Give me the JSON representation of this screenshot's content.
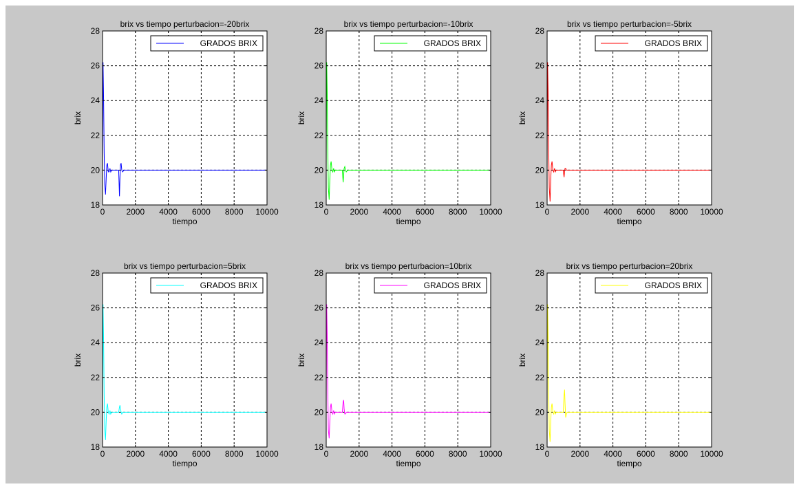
{
  "figure": {
    "background": "#c8c8c8"
  },
  "chart_data": [
    {
      "type": "line",
      "title": "brix vs tiempo perturbacion=-20brix",
      "xlabel": "tiempo",
      "ylabel": "brix",
      "xlim": [
        0,
        10000
      ],
      "ylim": [
        18,
        28
      ],
      "xticks": [
        "0",
        "2000",
        "4000",
        "6000",
        "8000",
        "10000"
      ],
      "yticks": [
        "18",
        "20",
        "22",
        "24",
        "26",
        "28"
      ],
      "grid": true,
      "legend_position": "top-right",
      "color": "#0000ff",
      "series": [
        {
          "name": "GRADOS BRIX",
          "x": [
            0,
            30,
            60,
            100,
            130,
            180,
            220,
            260,
            300,
            350,
            400,
            450,
            500,
            550,
            600,
            700,
            800,
            900,
            980,
            1030,
            1060,
            1090,
            1130,
            1170,
            1220,
            1300,
            1500,
            2000,
            10000
          ],
          "y": [
            20,
            26.2,
            24.5,
            21,
            19.2,
            18.6,
            19.5,
            20.3,
            20.4,
            19.9,
            19.9,
            20.1,
            19.9,
            20.0,
            20.0,
            20.0,
            20.0,
            20.0,
            20.0,
            18.5,
            19.6,
            20.3,
            20.4,
            20.0,
            19.9,
            20.0,
            20.0,
            20.0,
            20.0
          ]
        }
      ]
    },
    {
      "type": "line",
      "title": "brix vs tiempo perturbacion=-10brix",
      "xlabel": "tiempo",
      "ylabel": "brix",
      "xlim": [
        0,
        10000
      ],
      "ylim": [
        18,
        28
      ],
      "xticks": [
        "0",
        "2000",
        "4000",
        "6000",
        "8000",
        "10000"
      ],
      "yticks": [
        "18",
        "20",
        "22",
        "24",
        "26",
        "28"
      ],
      "grid": true,
      "legend_position": "top-right",
      "color": "#00ff00",
      "series": [
        {
          "name": "GRADOS BRIX",
          "x": [
            0,
            30,
            60,
            100,
            130,
            180,
            220,
            260,
            300,
            350,
            400,
            450,
            500,
            550,
            600,
            700,
            800,
            900,
            980,
            1030,
            1060,
            1090,
            1130,
            1170,
            1220,
            1300,
            1500,
            2000,
            10000
          ],
          "y": [
            20,
            26.2,
            24.5,
            21,
            19.0,
            18.3,
            19.5,
            20.3,
            20.5,
            20.0,
            19.9,
            20.1,
            19.9,
            20.0,
            20.0,
            20.0,
            20.0,
            20.0,
            20.0,
            19.3,
            19.7,
            20.1,
            20.2,
            20.0,
            19.9,
            20.0,
            20.0,
            20.0,
            20.0
          ]
        }
      ]
    },
    {
      "type": "line",
      "title": "brix vs tiempo perturbacion=-5brix",
      "xlabel": "tiempo",
      "ylabel": "brix",
      "xlim": [
        0,
        10000
      ],
      "ylim": [
        18,
        28
      ],
      "xticks": [
        "0",
        "2000",
        "4000",
        "6000",
        "8000",
        "10000"
      ],
      "yticks": [
        "18",
        "20",
        "22",
        "24",
        "26",
        "28"
      ],
      "grid": true,
      "legend_position": "top-right",
      "color": "#ff0000",
      "series": [
        {
          "name": "GRADOS BRIX",
          "x": [
            0,
            30,
            60,
            100,
            130,
            180,
            220,
            260,
            300,
            350,
            400,
            450,
            500,
            550,
            600,
            700,
            800,
            900,
            980,
            1030,
            1060,
            1090,
            1130,
            1170,
            1220,
            1300,
            1500,
            2000,
            10000
          ],
          "y": [
            20,
            26.2,
            24.5,
            21,
            19.0,
            18.2,
            19.5,
            20.3,
            20.5,
            20.0,
            19.9,
            20.1,
            19.9,
            20.0,
            20.0,
            20.0,
            20.0,
            20.0,
            20.0,
            19.6,
            19.9,
            20.1,
            20.1,
            20.0,
            20.0,
            20.0,
            20.0,
            20.0,
            20.0
          ]
        }
      ]
    },
    {
      "type": "line",
      "title": "brix vs tiempo perturbacion=5brix",
      "xlabel": "tiempo",
      "ylabel": "brix",
      "xlim": [
        0,
        10000
      ],
      "ylim": [
        18,
        28
      ],
      "xticks": [
        "0",
        "2000",
        "4000",
        "6000",
        "8000",
        "10000"
      ],
      "yticks": [
        "18",
        "20",
        "22",
        "24",
        "26",
        "28"
      ],
      "grid": true,
      "legend_position": "top-right",
      "color": "#00ffff",
      "series": [
        {
          "name": "GRADOS BRIX",
          "x": [
            0,
            30,
            60,
            100,
            130,
            180,
            220,
            260,
            300,
            350,
            400,
            450,
            500,
            550,
            600,
            700,
            800,
            900,
            980,
            1030,
            1060,
            1090,
            1130,
            1170,
            1220,
            1300,
            1500,
            2000,
            10000
          ],
          "y": [
            20,
            26.2,
            24.5,
            21,
            19.0,
            18.4,
            19.5,
            20.3,
            20.5,
            20.0,
            19.9,
            20.1,
            19.9,
            20.0,
            20.0,
            20.0,
            20.0,
            20.0,
            20.0,
            20.3,
            20.4,
            20.2,
            20.0,
            19.9,
            20.0,
            20.0,
            20.0,
            20.0,
            20.0
          ]
        }
      ]
    },
    {
      "type": "line",
      "title": "brix vs tiempo perturbacion=10brix",
      "xlabel": "tiempo",
      "ylabel": "brix",
      "xlim": [
        0,
        10000
      ],
      "ylim": [
        18,
        28
      ],
      "xticks": [
        "0",
        "2000",
        "4000",
        "6000",
        "8000",
        "10000"
      ],
      "yticks": [
        "18",
        "20",
        "22",
        "24",
        "26",
        "28"
      ],
      "grid": true,
      "legend_position": "top-right",
      "color": "#ff00ff",
      "series": [
        {
          "name": "GRADOS BRIX",
          "x": [
            0,
            30,
            60,
            100,
            130,
            180,
            220,
            260,
            300,
            350,
            400,
            450,
            500,
            550,
            600,
            700,
            800,
            900,
            980,
            1030,
            1060,
            1090,
            1130,
            1170,
            1220,
            1300,
            1500,
            2000,
            10000
          ],
          "y": [
            20,
            26.2,
            24.5,
            21,
            19.0,
            18.5,
            19.5,
            20.3,
            20.5,
            20.0,
            19.9,
            20.1,
            19.9,
            20.0,
            20.0,
            20.0,
            20.0,
            20.0,
            20.0,
            20.6,
            20.7,
            20.2,
            19.9,
            19.9,
            20.0,
            20.0,
            20.0,
            20.0,
            20.0
          ]
        }
      ]
    },
    {
      "type": "line",
      "title": "brix vs tiempo perturbacion=20brix",
      "xlabel": "tiempo",
      "ylabel": "brix",
      "xlim": [
        0,
        10000
      ],
      "ylim": [
        18,
        28
      ],
      "xticks": [
        "0",
        "2000",
        "4000",
        "6000",
        "8000",
        "10000"
      ],
      "yticks": [
        "18",
        "20",
        "22",
        "24",
        "26",
        "28"
      ],
      "grid": true,
      "legend_position": "top-right",
      "color": "#ffff00",
      "series": [
        {
          "name": "GRADOS BRIX",
          "x": [
            0,
            30,
            60,
            100,
            130,
            180,
            220,
            260,
            300,
            350,
            400,
            450,
            500,
            550,
            600,
            700,
            800,
            900,
            980,
            1030,
            1060,
            1090,
            1130,
            1170,
            1220,
            1300,
            1500,
            2000,
            10000
          ],
          "y": [
            20,
            26.2,
            24.5,
            21,
            19.0,
            18.3,
            19.5,
            20.3,
            20.5,
            20.0,
            19.9,
            20.1,
            19.9,
            20.0,
            20.0,
            20.0,
            20.0,
            20.0,
            20.0,
            21.0,
            21.3,
            20.5,
            19.7,
            19.9,
            20.0,
            20.0,
            20.0,
            20.0,
            20.0
          ]
        }
      ]
    }
  ]
}
